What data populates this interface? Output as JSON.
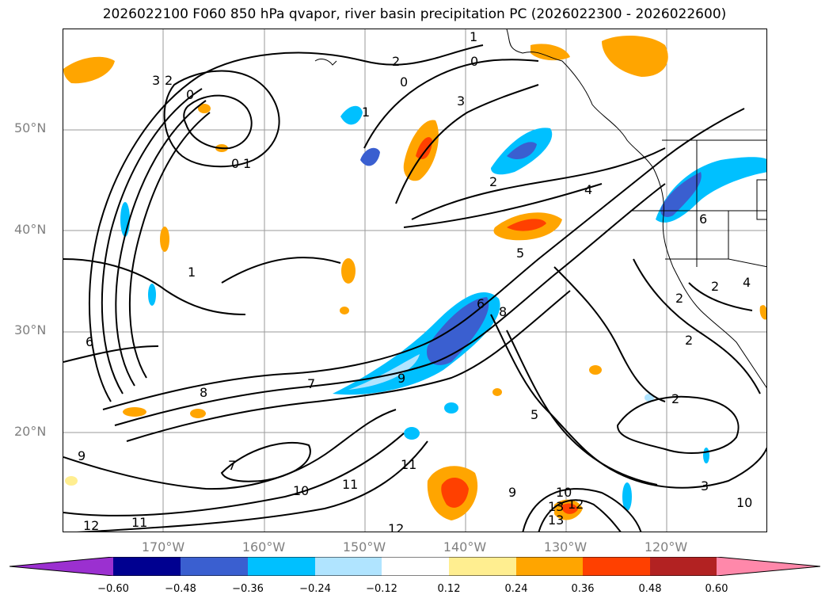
{
  "title": "2026022100 F060 850 hPa qvapor, river basin precipitation PC (2026022300 - 2026022600)",
  "lat_labels": [
    "50°N",
    "40°N",
    "30°N",
    "20°N"
  ],
  "lon_labels": [
    "170°W",
    "160°W",
    "150°W",
    "140°W",
    "130°W",
    "120°W"
  ],
  "colorbar": {
    "ticks": [
      "−0.60",
      "−0.48",
      "−0.36",
      "−0.24",
      "−0.12",
      "0.12",
      "0.24",
      "0.36",
      "0.48",
      "0.60"
    ],
    "colors": [
      "#9b30d0",
      "#000090",
      "#3a5fd0",
      "#00c0ff",
      "#b0e4ff",
      "#ffffff",
      "#ffee90",
      "#ffa500",
      "#ff4000",
      "#b22222",
      "#ff88aa"
    ]
  },
  "contour_labels": [
    "1",
    "0",
    "2",
    "0",
    "3",
    "2",
    "0",
    "1",
    "0",
    "1",
    "3",
    "2",
    "4",
    "5",
    "6",
    "8",
    "7",
    "9",
    "6",
    "8",
    "1",
    "9",
    "7",
    "10",
    "11",
    "11",
    "12",
    "11",
    "12",
    "5",
    "9",
    "10",
    "13",
    "13",
    "12",
    "2",
    "2",
    "3",
    "10",
    "2",
    "2",
    "4",
    "6"
  ],
  "colors": {
    "contour": "#000000",
    "gridline": "#9a9a9a",
    "axis_label": "#808080"
  }
}
